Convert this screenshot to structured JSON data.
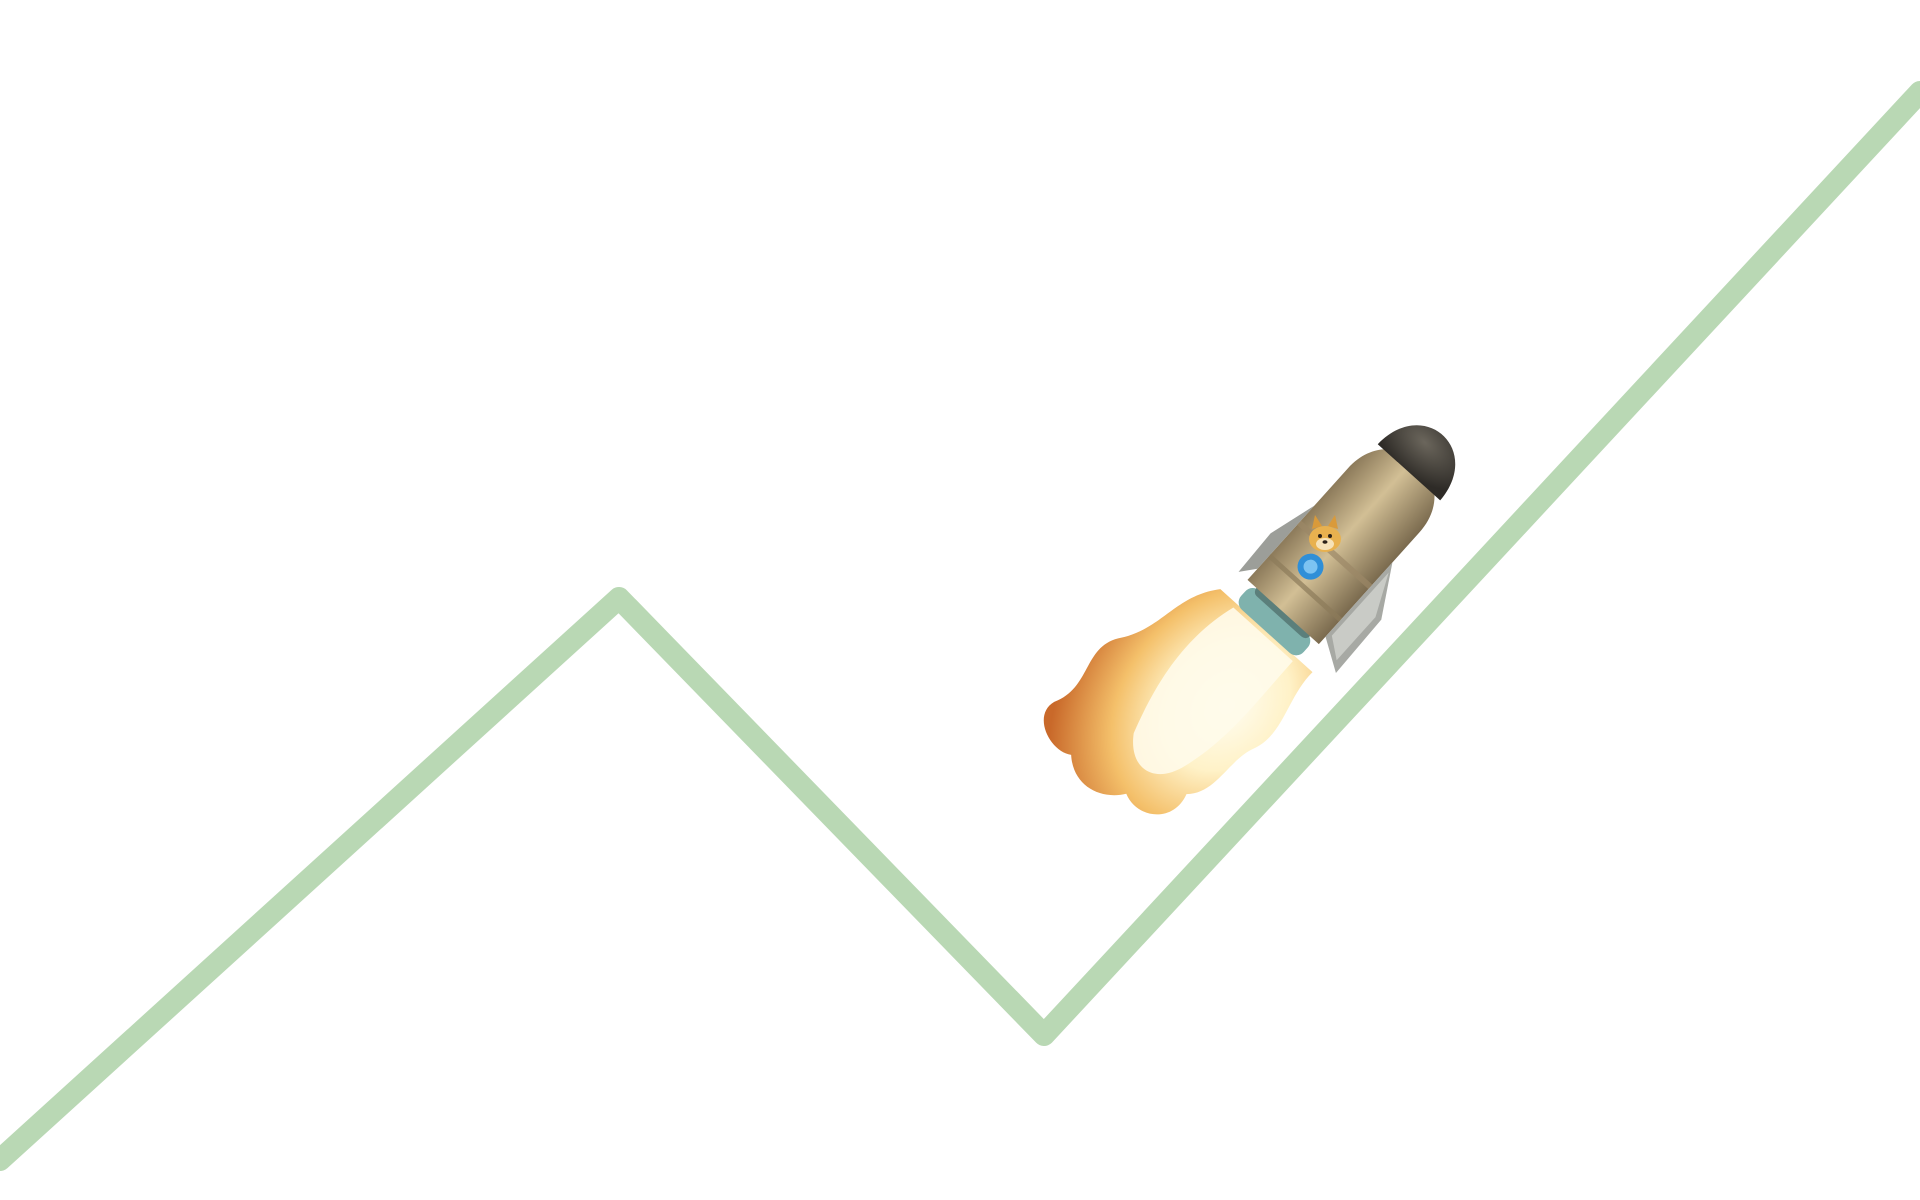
{
  "colors": {
    "background": "#ffffff",
    "trend_line": "#b9d8b4",
    "rocket_body": "#b8a27a",
    "rocket_nose": "#4a4640",
    "rocket_fin": "#a7a9a4",
    "rocket_nozzle": "#7fb2ad",
    "rocket_emblem": "#2f8fd8",
    "doge": "#e8b14f",
    "flame_outer": "#d97a2f",
    "flame_mid": "#f3c673",
    "flame_core": "#fffbe8"
  },
  "trend_line": {
    "shape": "zigzag",
    "segments": [
      "up",
      "down",
      "up"
    ]
  },
  "illustration": {
    "subject": "doge-riding-rocket",
    "icons": [
      "rocket-icon",
      "doge-icon",
      "flame-icon"
    ]
  }
}
